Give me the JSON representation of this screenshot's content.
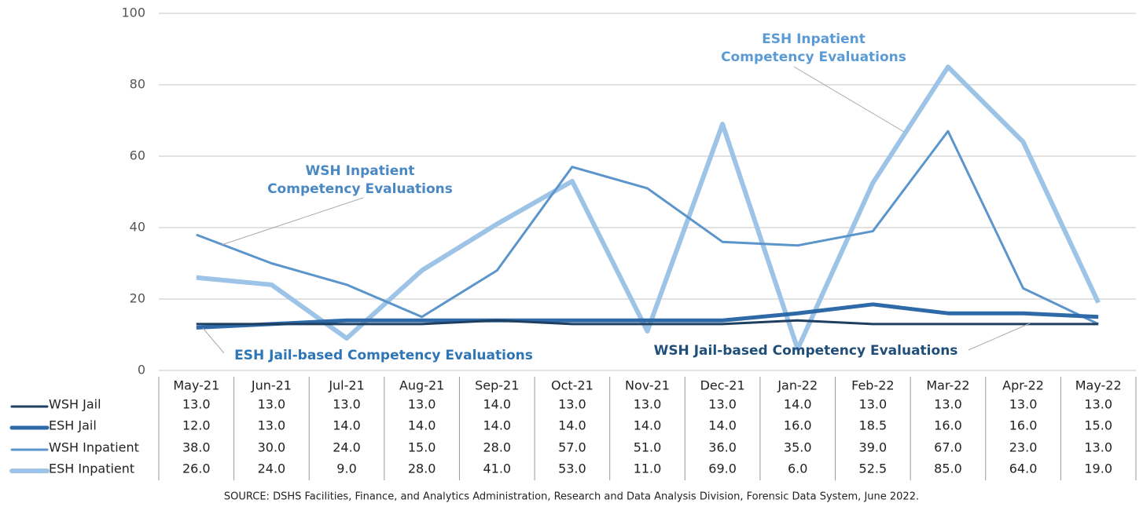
{
  "chart_data": {
    "type": "line",
    "categories": [
      "May-21",
      "Jun-21",
      "Jul-21",
      "Aug-21",
      "Sep-21",
      "Oct-21",
      "Nov-21",
      "Dec-21",
      "Jan-22",
      "Feb-22",
      "Mar-22",
      "Apr-22",
      "May-22"
    ],
    "series": [
      {
        "name": "WSH Jail",
        "color": "#1f3f60",
        "width": 3,
        "values": [
          13,
          13,
          13,
          13,
          14,
          13,
          13,
          13,
          14,
          13,
          13,
          13,
          13
        ],
        "value_labels": [
          "13.0",
          "13.0",
          "13.0",
          "13.0",
          "14.0",
          "13.0",
          "13.0",
          "13.0",
          "14.0",
          "13.0",
          "13.0",
          "13.0",
          "13.0"
        ]
      },
      {
        "name": "ESH Jail",
        "color": "#2e6aa8",
        "width": 5,
        "values": [
          12,
          13,
          14,
          14,
          14,
          14,
          14,
          14,
          16,
          18.5,
          16,
          16,
          15
        ],
        "value_labels": [
          "12.0",
          "13.0",
          "14.0",
          "14.0",
          "14.0",
          "14.0",
          "14.0",
          "14.0",
          "16.0",
          "18.5",
          "16.0",
          "16.0",
          "15.0"
        ]
      },
      {
        "name": "WSH Inpatient",
        "color": "#5b95cc",
        "width": 3,
        "values": [
          38,
          30,
          24,
          15,
          28,
          57,
          51,
          36,
          35,
          39,
          67,
          23,
          13
        ],
        "value_labels": [
          "38.0",
          "30.0",
          "24.0",
          "15.0",
          "28.0",
          "57.0",
          "51.0",
          "36.0",
          "35.0",
          "39.0",
          "67.0",
          "23.0",
          "13.0"
        ]
      },
      {
        "name": "ESH Inpatient",
        "color": "#9dc3e6",
        "width": 6,
        "values": [
          26,
          24,
          9,
          28,
          41,
          53,
          11,
          69,
          6,
          52.5,
          85,
          64,
          19
        ],
        "value_labels": [
          "26.0",
          "24.0",
          "9.0",
          "28.0",
          "41.0",
          "53.0",
          "11.0",
          "69.0",
          "6.0",
          "52.5",
          "85.0",
          "64.0",
          "19.0"
        ]
      }
    ],
    "ylim": [
      0,
      100
    ],
    "yticks": [
      0,
      20,
      40,
      60,
      80,
      100
    ],
    "grid": true,
    "annotations": [
      {
        "lines": [
          "ESH Inpatient",
          "Competency Evaluations"
        ],
        "color": "#5b9bd5"
      },
      {
        "lines": [
          "WSH Inpatient",
          "Competency Evaluations"
        ],
        "color": "#4a88c4"
      },
      {
        "lines": [
          "ESH Jail-based Competency Evaluations"
        ],
        "color": "#2e75b6"
      },
      {
        "lines": [
          "WSH Jail-based Competency Evaluations"
        ],
        "color": "#1f4e79"
      }
    ],
    "source": "SOURCE: DSHS Facilities, Finance, and Analytics Administration, Research and Data Analysis Division, Forensic Data System, June 2022."
  }
}
